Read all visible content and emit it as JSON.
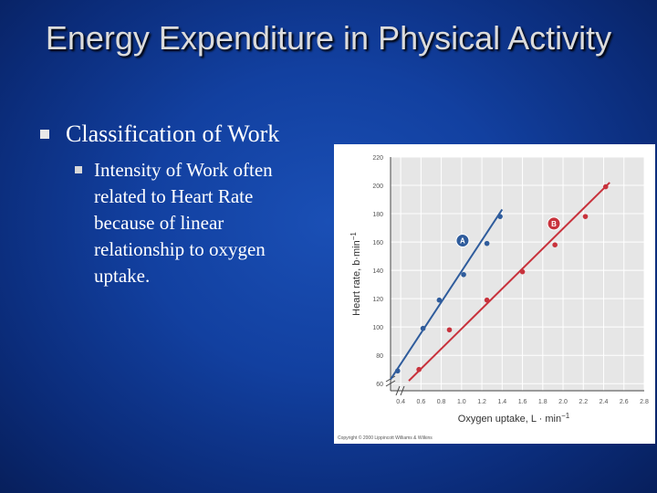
{
  "slide": {
    "title": "Energy Expenditure in Physical Activity",
    "bullet1": "Classification of Work",
    "bullet2": "Intensity of Work often related to Heart Rate because of linear relationship to oxygen uptake."
  },
  "chart_data": {
    "type": "scatter",
    "xlabel": "Oxygen uptake, L · min",
    "xlabel_sup": "−1",
    "ylabel": "Heart rate, b·min",
    "ylabel_sup": "−1",
    "xlim": [
      0.3,
      2.8
    ],
    "ylim": [
      55,
      220
    ],
    "x_ticks": [
      "0.4",
      "0.6",
      "0.8",
      "1.0",
      "1.2",
      "1.4",
      "1.6",
      "1.8",
      "2.0",
      "2.2",
      "2.4",
      "2.6",
      "2.8"
    ],
    "y_ticks": [
      "60",
      "80",
      "100",
      "120",
      "140",
      "160",
      "180",
      "200",
      "220"
    ],
    "grid": true,
    "axis_break": true,
    "series": [
      {
        "name": "A",
        "color": "#2f5c9c",
        "points": [
          [
            0.37,
            69
          ],
          [
            0.62,
            99
          ],
          [
            0.78,
            119
          ],
          [
            1.02,
            137
          ],
          [
            1.25,
            159
          ],
          [
            1.38,
            178
          ]
        ],
        "fit": [
          [
            0.3,
            63
          ],
          [
            1.4,
            183
          ]
        ]
      },
      {
        "name": "B",
        "color": "#c8323c",
        "points": [
          [
            0.58,
            70
          ],
          [
            0.88,
            98
          ],
          [
            1.25,
            119
          ],
          [
            1.6,
            139
          ],
          [
            1.92,
            158
          ],
          [
            2.22,
            178
          ],
          [
            2.42,
            199
          ]
        ],
        "fit": [
          [
            0.48,
            62
          ],
          [
            2.46,
            202
          ]
        ]
      }
    ],
    "copyright": "Copyright © 2000 Lippincott Williams & Wilkins"
  }
}
